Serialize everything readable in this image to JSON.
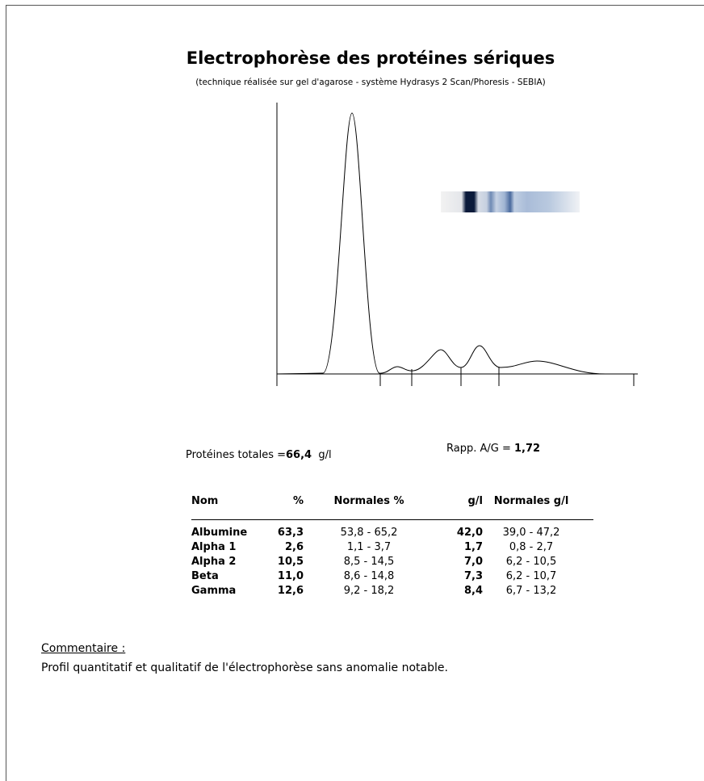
{
  "header": {
    "title": "Electrophorèse des protéines sériques",
    "subtitle": "(technique réalisée sur gel d'agarose - système Hydrasys 2 Scan/Phoresis - SEBIA)"
  },
  "totals": {
    "label": "Protéines totales =",
    "value": "66,4",
    "unit": "g/l"
  },
  "ratio": {
    "label": "Rapp. A/G =",
    "value": "1,72"
  },
  "table": {
    "columns": [
      "Nom",
      "%",
      "Normales %",
      "g/l",
      "Normales g/l"
    ],
    "rows": [
      [
        "Albumine",
        "63,3",
        "53,8 - 65,2",
        "42,0",
        "39,0 - 47,2"
      ],
      [
        "Alpha 1",
        "2,6",
        "1,1 - 3,7",
        "1,7",
        "0,8 - 2,7"
      ],
      [
        "Alpha 2",
        "10,5",
        "8,5 - 14,5",
        "7,0",
        "6,2 - 10,5"
      ],
      [
        "Beta",
        "11,0",
        "8,6 - 14,8",
        "7,3",
        "6,2 - 10,7"
      ],
      [
        "Gamma",
        "12,6",
        "9,2 - 18,2",
        "8,4",
        "6,7 - 13,2"
      ]
    ]
  },
  "comment": {
    "label": "Commentaire :",
    "text": "Profil quantitatif et qualitatif de l'électrophorèse sans anomalie notable."
  }
}
